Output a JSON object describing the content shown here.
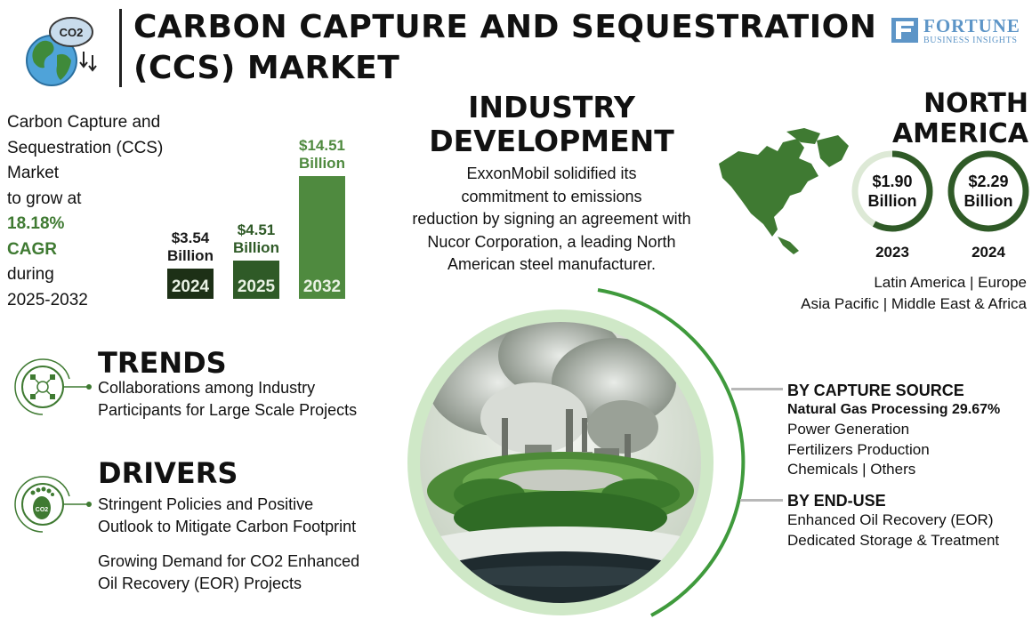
{
  "header": {
    "title_line1": "CARBON CAPTURE AND SEQUESTRATION",
    "title_line2": "(CCS) MARKET",
    "co2_label": "CO2",
    "brand_name": "FORTUNE",
    "brand_sub": "BUSINESS INSIGHTS"
  },
  "intro": {
    "line1": "Carbon Capture and",
    "line2": "Sequestration (CCS)",
    "line3": "Market",
    "line4": "to grow at",
    "cagr_value": "18.18%",
    "cagr_label": "CAGR",
    "line7": "during",
    "period": "2025-2032"
  },
  "chart_data": {
    "type": "bar",
    "categories": [
      "2024",
      "2025",
      "2032"
    ],
    "values": [
      3.54,
      4.51,
      14.51
    ],
    "value_labels": [
      {
        "amount": "$3.54",
        "unit": "Billion"
      },
      {
        "amount": "$4.51",
        "unit": "Billion"
      },
      {
        "amount": "$14.51",
        "unit": "Billion"
      }
    ],
    "bar_colors": [
      "#1d3016",
      "#2f5a27",
      "#4f8a3f"
    ],
    "label_colors": [
      "#1a1a1a",
      "#2f5a27",
      "#4f8a3f"
    ],
    "xlabel": "",
    "ylabel": "",
    "title": ""
  },
  "industry": {
    "heading_line1": "INDUSTRY",
    "heading_line2": "DEVELOPMENT",
    "lines": [
      "ExxonMobil solidified its",
      "commitment to emissions",
      "reduction by signing an agreement with",
      "Nucor Corporation, a leading North",
      "American steel manufacturer."
    ]
  },
  "region": {
    "heading": "NORTH AMERICA",
    "rings": [
      {
        "amount": "$1.90",
        "unit": "Billion",
        "year": "2023",
        "fill_fraction": 0.58
      },
      {
        "amount": "$2.29",
        "unit": "Billion",
        "year": "2024",
        "fill_fraction": 1.0
      }
    ],
    "others_line1": "Latin America  |  Europe",
    "others_line2": "Asia Pacific  |  Middle East & Africa"
  },
  "trends": {
    "heading": "TRENDS",
    "line1": "Collaborations among Industry",
    "line2": "Participants for Large Scale Projects"
  },
  "drivers": {
    "heading": "DRIVERS",
    "item1_line1": "Stringent Policies and Positive",
    "item1_line2": "Outlook to Mitigate Carbon Footprint",
    "item2_line1": "Growing Demand for CO2 Enhanced",
    "item2_line2": "Oil Recovery (EOR) Projects",
    "icon_label": "CO2"
  },
  "capture_source": {
    "heading": "BY CAPTURE SOURCE",
    "lead": "Natural Gas Processing 29.67%",
    "items": [
      "Power Generation",
      "Fertilizers Production",
      "Chemicals  |  Others"
    ]
  },
  "end_use": {
    "heading": "BY END-USE",
    "items": [
      "Enhanced Oil Recovery (EOR)",
      "Dedicated Storage & Treatment"
    ]
  },
  "colors": {
    "accent_green": "#3f7a32",
    "dark_green": "#2f5a27",
    "ring_light": "#dde9d6",
    "brand_blue": "#5d95c7"
  },
  "icons": [
    "co2-earth-icon",
    "network-icon",
    "footprint-icon",
    "north-america-map-icon",
    "ccs-landscape-image",
    "brand-logo-icon"
  ]
}
